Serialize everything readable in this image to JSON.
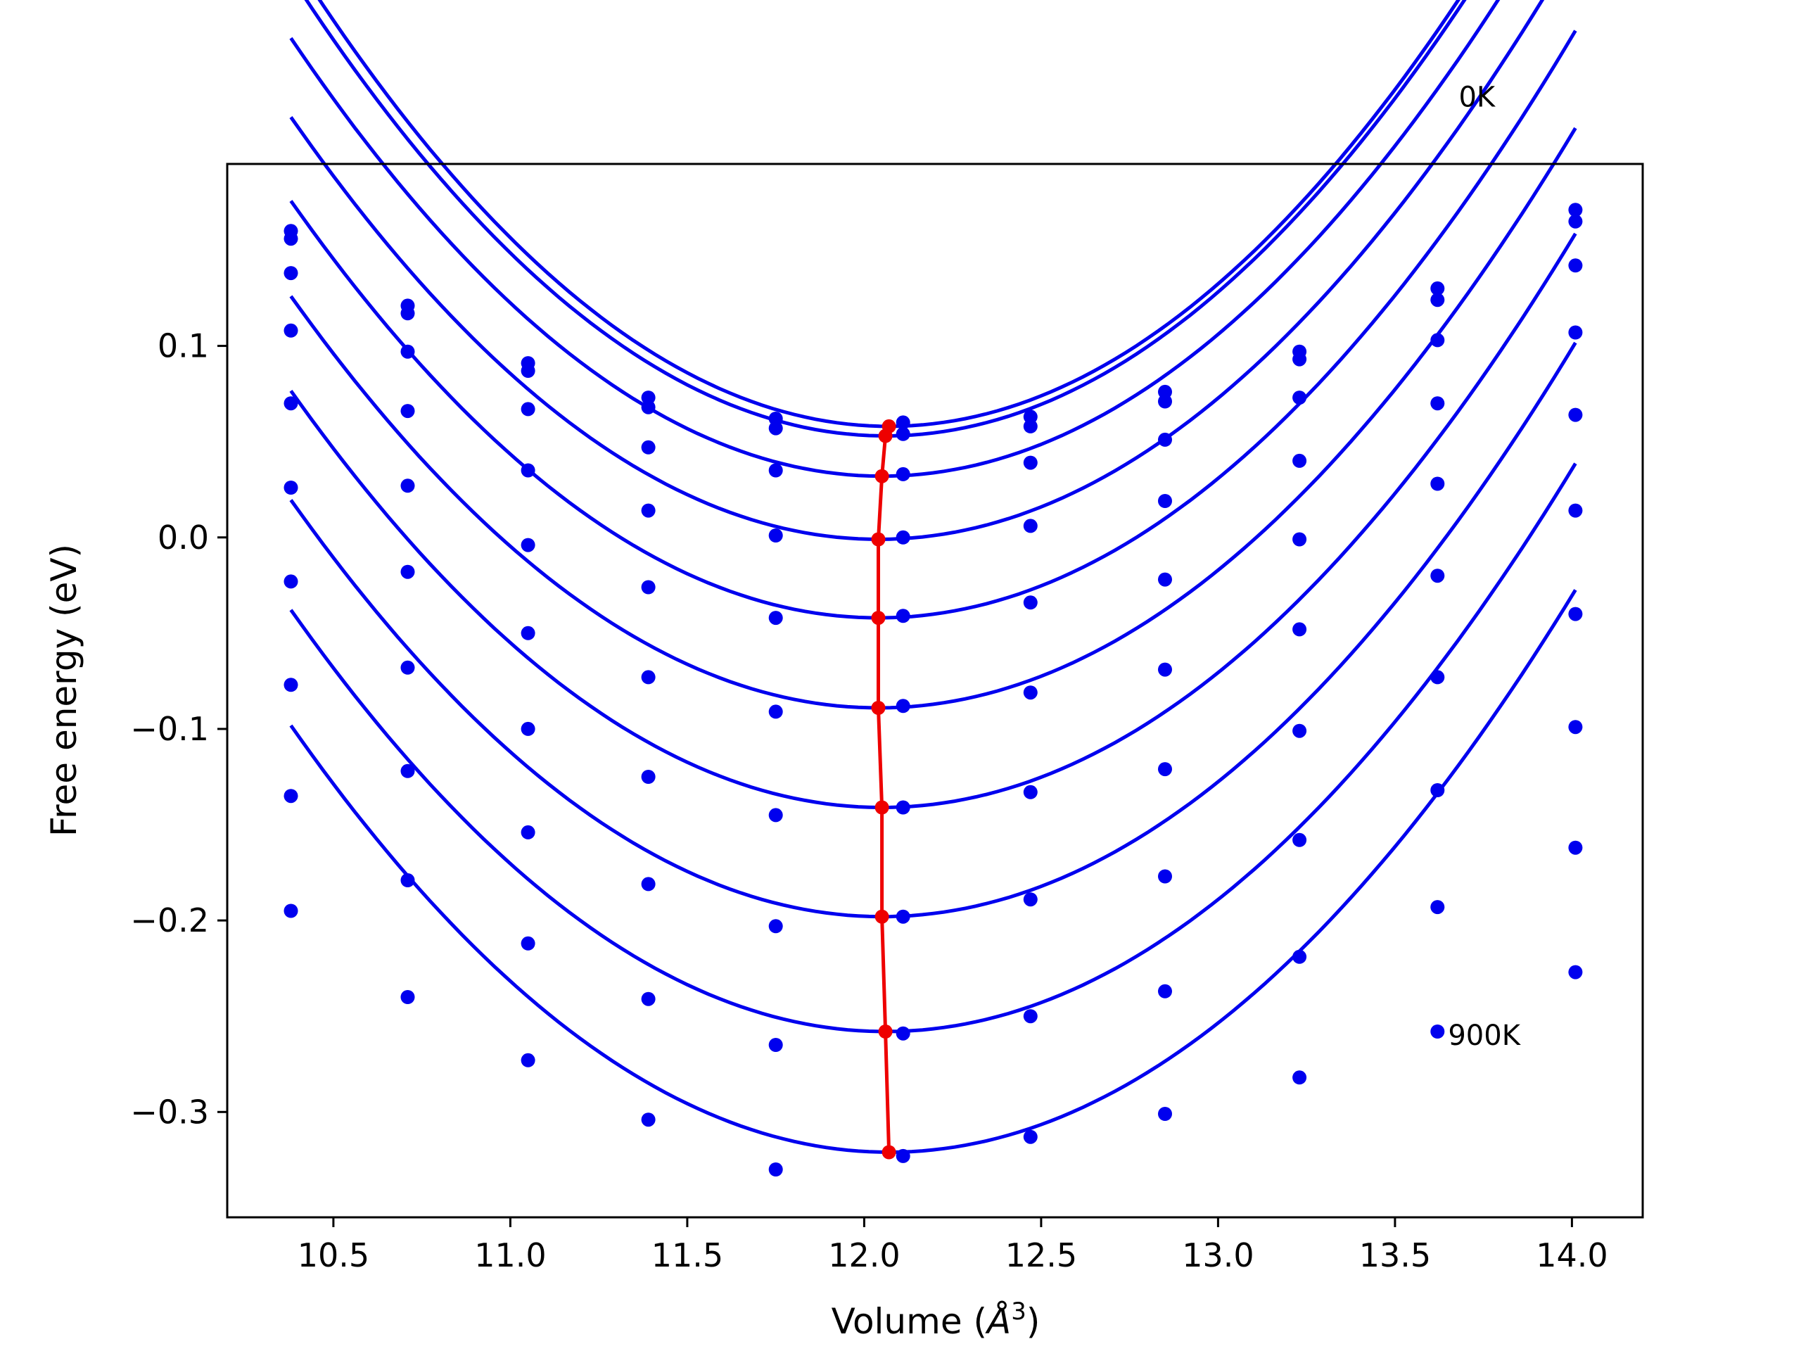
{
  "chart_data": {
    "type": "line",
    "title": "",
    "xlabel": "Volume (",
    "xlabel_unit": "Å",
    "xlabel_sup": "3",
    "xlabel_close": ")",
    "ylabel": "Free energy (eV)",
    "xlim": [
      10.2,
      14.2
    ],
    "ylim": [
      -0.355,
      0.195
    ],
    "x_ticks": [
      10.5,
      11.0,
      11.5,
      12.0,
      12.5,
      13.0,
      13.5,
      14.0
    ],
    "x_tick_labels": [
      "10.5",
      "11.0",
      "11.5",
      "12.0",
      "12.5",
      "13.0",
      "13.5",
      "14.0"
    ],
    "y_ticks": [
      -0.3,
      -0.2,
      -0.1,
      0.0,
      0.1
    ],
    "y_tick_labels": [
      "−0.3",
      "−0.2",
      "−0.1",
      "0.0",
      "0.1"
    ],
    "grid": false,
    "legend": "none",
    "annotations": [
      {
        "text": "0K",
        "x": 13.68,
        "y": 0.225
      },
      {
        "text": "900K",
        "x": 13.65,
        "y": -0.265
      }
    ],
    "colors": {
      "series": "#0000ee",
      "minima": "#ee0000"
    },
    "x": [
      10.38,
      10.71,
      11.05,
      11.39,
      11.75,
      12.11,
      12.47,
      12.85,
      13.23,
      13.62,
      14.01
    ],
    "series": [
      {
        "values": [
          0.16,
          0.121,
          0.091,
          0.073,
          0.062,
          0.06,
          0.063,
          0.076,
          0.097,
          0.13,
          0.171
        ],
        "fit_min_v": 12.07,
        "fit_min_f": 0.058,
        "fit_a": 0.086
      },
      {
        "values": [
          0.156,
          0.117,
          0.087,
          0.068,
          0.057,
          0.054,
          0.058,
          0.071,
          0.093,
          0.124,
          0.165
        ],
        "fit_min_v": 12.06,
        "fit_min_f": 0.053,
        "fit_a": 0.085
      },
      {
        "values": [
          0.138,
          0.097,
          0.067,
          0.047,
          0.035,
          0.033,
          0.039,
          0.051,
          0.073,
          0.103,
          0.142
        ],
        "fit_min_v": 12.05,
        "fit_min_f": 0.032,
        "fit_a": 0.082
      },
      {
        "values": [
          0.108,
          0.066,
          0.035,
          0.014,
          0.001,
          0.0,
          0.006,
          0.019,
          0.04,
          0.07,
          0.107
        ],
        "fit_min_v": 12.04,
        "fit_min_f": -0.001,
        "fit_a": 0.08
      },
      {
        "values": [
          0.07,
          0.027,
          -0.004,
          -0.026,
          -0.042,
          -0.041,
          -0.034,
          -0.022,
          -0.001,
          0.028,
          0.064
        ],
        "fit_min_v": 12.04,
        "fit_min_f": -0.042,
        "fit_a": 0.079
      },
      {
        "values": [
          0.026,
          -0.018,
          -0.05,
          -0.073,
          -0.091,
          -0.088,
          -0.081,
          -0.069,
          -0.048,
          -0.02,
          0.014
        ],
        "fit_min_v": 12.04,
        "fit_min_f": -0.089,
        "fit_a": 0.078
      },
      {
        "values": [
          -0.023,
          -0.068,
          -0.1,
          -0.125,
          -0.145,
          -0.141,
          -0.133,
          -0.121,
          -0.101,
          -0.073,
          -0.04
        ],
        "fit_min_v": 12.05,
        "fit_min_f": -0.141,
        "fit_a": 0.078
      },
      {
        "values": [
          -0.077,
          -0.122,
          -0.154,
          -0.181,
          -0.203,
          -0.198,
          -0.189,
          -0.177,
          -0.158,
          -0.132,
          -0.099
        ],
        "fit_min_v": 12.05,
        "fit_min_f": -0.198,
        "fit_a": 0.078
      },
      {
        "values": [
          -0.135,
          -0.179,
          -0.212,
          -0.241,
          -0.265,
          -0.259,
          -0.25,
          -0.237,
          -0.219,
          -0.193,
          -0.162
        ],
        "fit_min_v": 12.06,
        "fit_min_f": -0.258,
        "fit_a": 0.078
      },
      {
        "values": [
          -0.195,
          -0.24,
          -0.273,
          -0.304,
          -0.33,
          -0.323,
          -0.313,
          -0.301,
          -0.282,
          -0.258,
          -0.227
        ],
        "fit_min_v": 12.07,
        "fit_min_f": -0.321,
        "fit_a": 0.078
      }
    ],
    "minima": {
      "x": [
        12.07,
        12.06,
        12.05,
        12.04,
        12.04,
        12.04,
        12.05,
        12.05,
        12.06,
        12.07
      ],
      "y": [
        0.058,
        0.053,
        0.032,
        -0.001,
        -0.042,
        -0.089,
        -0.141,
        -0.198,
        -0.258,
        -0.321
      ]
    }
  }
}
